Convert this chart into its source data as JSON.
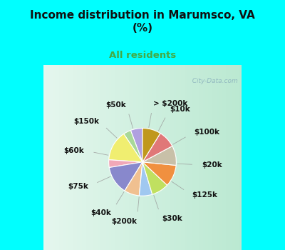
{
  "title": "Income distribution in Marumsco, VA\n(%)",
  "subtitle": "All residents",
  "title_color": "#111111",
  "subtitle_color": "#44aa44",
  "background_color": "#00FFFF",
  "chart_bg_color": "#d8f0e8",
  "labels": [
    "> $200k",
    "$10k",
    "$100k",
    "$20k",
    "$125k",
    "$30k",
    "$200k",
    "$40k",
    "$75k",
    "$60k",
    "$150k",
    "$50k"
  ],
  "values": [
    5.5,
    3.5,
    14.0,
    3.5,
    13.0,
    7.0,
    6.0,
    8.0,
    10.0,
    9.0,
    8.0,
    8.5
  ],
  "colors": [
    "#b0a0e0",
    "#a8d898",
    "#f0ee70",
    "#f0a8b8",
    "#8888cc",
    "#f0c090",
    "#a0c8f0",
    "#c0e060",
    "#f09040",
    "#c8c0a8",
    "#e07878",
    "#c0981c"
  ],
  "label_fontsize": 7.5,
  "title_fontsize": 11,
  "subtitle_fontsize": 9.5,
  "watermark": "  City-Data.com"
}
